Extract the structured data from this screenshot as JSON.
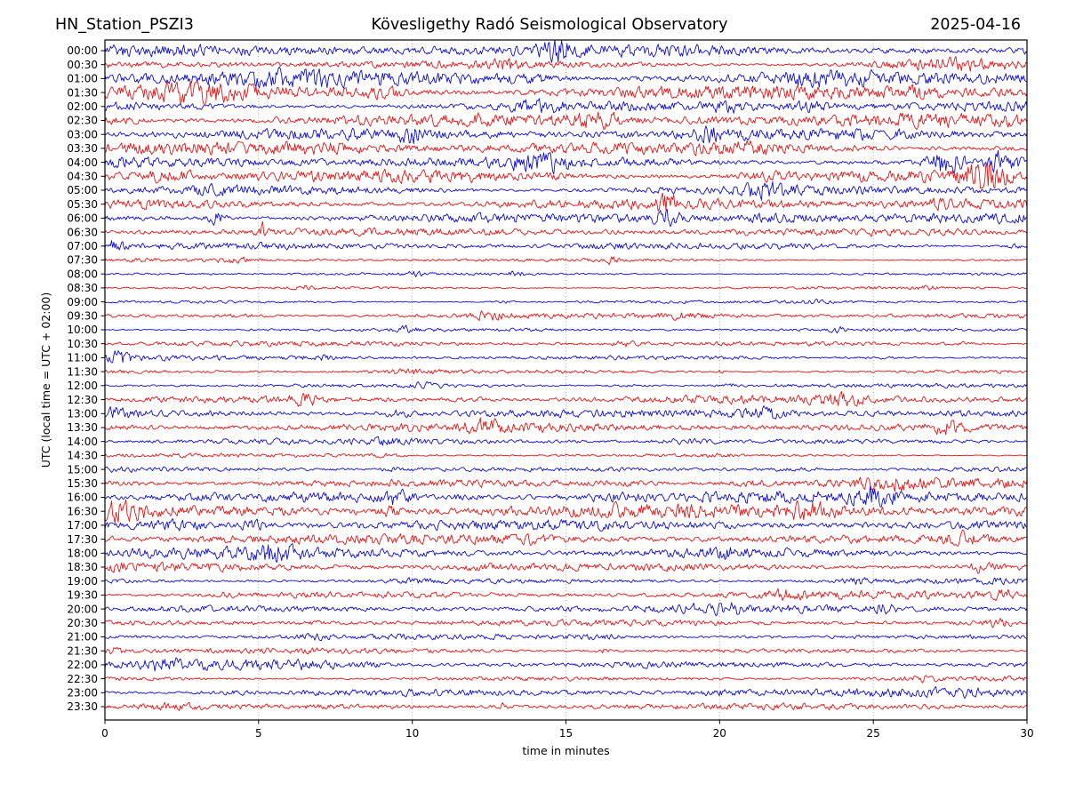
{
  "header": {
    "station": "HN_Station_PSZI3",
    "observatory": "Kövesligethy Radó Seismological Observatory",
    "date": "2025-04-16"
  },
  "chart_data": {
    "type": "line",
    "subtype": "helicorder-dayplot",
    "title": "HN_Station_PSZI3 — Kövesligethy Radó Seismological Observatory — 2025-04-16",
    "xlabel": "time in minutes",
    "ylabel": "UTC (local time = UTC + 02:00)",
    "xlim": [
      0,
      30
    ],
    "x_ticks": [
      0,
      5,
      10,
      15,
      20,
      25,
      30
    ],
    "grid": {
      "vertical_minutes": [
        5,
        10,
        15,
        20,
        25
      ],
      "style": "dotted",
      "color": "#999999"
    },
    "trace_colors": {
      "blue": "#0d0dd6",
      "red": "#e41414"
    },
    "frame_color": "#000000",
    "minutes_per_line": 30,
    "rows": [
      {
        "label": "00:00",
        "color": "blue",
        "amp": 3.0,
        "events": [
          [
            14.7,
            0.5,
            1.5
          ],
          [
            26.0,
            0.8,
            0.8
          ]
        ]
      },
      {
        "label": "00:30",
        "color": "red",
        "amp": 2.0,
        "events": [
          [
            13.0,
            0.4,
            1.2
          ],
          [
            27.3,
            2.2,
            1.6
          ]
        ]
      },
      {
        "label": "01:00",
        "color": "blue",
        "amp": 4.2,
        "events": [
          [
            6.0,
            1.5,
            0.5
          ],
          [
            14.0,
            0.8,
            0.8
          ],
          [
            23.0,
            1.5,
            0.5
          ]
        ]
      },
      {
        "label": "01:30",
        "color": "red",
        "amp": 4.2,
        "events": [
          [
            3.0,
            1.5,
            0.6
          ],
          [
            9.0,
            0.8,
            1.0
          ],
          [
            26.5,
            0.8,
            0.9
          ]
        ]
      },
      {
        "label": "02:00",
        "color": "blue",
        "amp": 2.7,
        "events": [
          [
            14.0,
            0.8,
            0.8
          ],
          [
            20.3,
            0.5,
            1.4
          ],
          [
            23.0,
            0.7,
            1.0
          ]
        ]
      },
      {
        "label": "02:30",
        "color": "red",
        "amp": 3.3,
        "events": [
          [
            0.5,
            0.8,
            0.8
          ],
          [
            16.0,
            0.7,
            1.2
          ]
        ]
      },
      {
        "label": "03:00",
        "color": "blue",
        "amp": 2.7,
        "events": [
          [
            9.9,
            0.4,
            1.4
          ],
          [
            19.6,
            0.5,
            1.0
          ]
        ]
      },
      {
        "label": "03:30",
        "color": "red",
        "amp": 3.1,
        "events": [
          [
            7.0,
            1.0,
            0.6
          ],
          [
            21.0,
            1.0,
            0.5
          ]
        ]
      },
      {
        "label": "04:00",
        "color": "blue",
        "amp": 2.9,
        "events": [
          [
            14.0,
            0.8,
            1.2
          ],
          [
            27.3,
            0.5,
            3.6
          ],
          [
            29.2,
            0.4,
            2.6
          ]
        ]
      },
      {
        "label": "04:30",
        "color": "red",
        "amp": 3.6,
        "events": [
          [
            2.0,
            1.0,
            0.7
          ],
          [
            21.5,
            1.0,
            0.7
          ],
          [
            28.6,
            0.6,
            3.2
          ]
        ]
      },
      {
        "label": "05:00",
        "color": "blue",
        "amp": 2.6,
        "events": [
          [
            4.0,
            1.0,
            0.5
          ],
          [
            21.5,
            0.8,
            1.2
          ]
        ]
      },
      {
        "label": "05:30",
        "color": "red",
        "amp": 2.9,
        "events": [
          [
            18.3,
            0.4,
            1.2
          ],
          [
            27.0,
            1.2,
            0.8
          ]
        ]
      },
      {
        "label": "06:00",
        "color": "blue",
        "amp": 2.4,
        "events": [
          [
            3.6,
            0.3,
            4.6
          ],
          [
            18.3,
            0.4,
            2.4
          ],
          [
            22.0,
            1.5,
            0.8
          ]
        ]
      },
      {
        "label": "06:30",
        "color": "red",
        "amp": 1.8,
        "events": [
          [
            1.5,
            1.0,
            0.5
          ],
          [
            5.1,
            0.15,
            2.6
          ]
        ]
      },
      {
        "label": "07:00",
        "color": "blue",
        "amp": 1.6,
        "events": [
          [
            0.3,
            0.3,
            2.2
          ],
          [
            16.0,
            1.0,
            0.6
          ],
          [
            29.6,
            0.3,
            2.4
          ]
        ]
      },
      {
        "label": "07:30",
        "color": "red",
        "amp": 0.9,
        "events": [
          [
            4.2,
            0.5,
            1.6
          ],
          [
            16.5,
            0.15,
            2.6
          ]
        ]
      },
      {
        "label": "08:00",
        "color": "blue",
        "amp": 0.8,
        "events": [
          [
            10.0,
            0.4,
            1.6
          ],
          [
            13.4,
            0.3,
            2.0
          ]
        ]
      },
      {
        "label": "08:30",
        "color": "red",
        "amp": 0.8,
        "events": [
          [
            6.5,
            0.3,
            1.5
          ],
          [
            26.8,
            0.3,
            1.8
          ]
        ]
      },
      {
        "label": "09:00",
        "color": "blue",
        "amp": 0.8,
        "events": [
          [
            13.0,
            0.3,
            1.9
          ],
          [
            23.0,
            0.5,
            0.9
          ]
        ]
      },
      {
        "label": "09:30",
        "color": "red",
        "amp": 1.3,
        "events": [
          [
            4.5,
            0.8,
            1.4
          ],
          [
            12.5,
            0.6,
            1.4
          ],
          [
            19.0,
            0.8,
            0.9
          ]
        ]
      },
      {
        "label": "10:00",
        "color": "blue",
        "amp": 0.8,
        "events": [
          [
            9.8,
            0.3,
            1.6
          ],
          [
            23.8,
            0.2,
            2.2
          ]
        ]
      },
      {
        "label": "10:30",
        "color": "red",
        "amp": 1.2,
        "events": [
          [
            16.8,
            0.4,
            1.7
          ],
          [
            28.0,
            0.6,
            1.0
          ]
        ]
      },
      {
        "label": "11:00",
        "color": "blue",
        "amp": 1.2,
        "events": [
          [
            0.5,
            0.4,
            2.0
          ],
          [
            7.0,
            0.6,
            1.2
          ],
          [
            25.5,
            0.8,
            1.2
          ]
        ]
      },
      {
        "label": "11:30",
        "color": "red",
        "amp": 1.1,
        "events": [
          [
            10.0,
            1.0,
            1.4
          ],
          [
            20.0,
            0.15,
            2.2
          ]
        ]
      },
      {
        "label": "12:00",
        "color": "blue",
        "amp": 1.1,
        "events": [
          [
            10.5,
            0.6,
            1.1
          ],
          [
            17.0,
            0.7,
            1.3
          ],
          [
            20.3,
            0.3,
            1.9
          ]
        ]
      },
      {
        "label": "12:30",
        "color": "red",
        "amp": 2.1,
        "events": [
          [
            6.5,
            0.5,
            1.3
          ],
          [
            12.0,
            0.8,
            0.8
          ],
          [
            24.0,
            0.8,
            0.8
          ]
        ]
      },
      {
        "label": "13:00",
        "color": "blue",
        "amp": 2.1,
        "events": [
          [
            0.5,
            0.5,
            1.3
          ],
          [
            9.5,
            0.5,
            1.4
          ],
          [
            21.5,
            0.6,
            1.2
          ]
        ]
      },
      {
        "label": "13:30",
        "color": "red",
        "amp": 2.1,
        "events": [
          [
            12.5,
            0.8,
            1.1
          ],
          [
            27.4,
            0.5,
            1.2
          ]
        ]
      },
      {
        "label": "14:00",
        "color": "blue",
        "amp": 1.3,
        "events": [
          [
            9.0,
            0.8,
            0.7
          ],
          [
            19.0,
            0.8,
            1.2
          ]
        ]
      },
      {
        "label": "14:30",
        "color": "red",
        "amp": 0.9,
        "events": [
          [
            9.0,
            0.6,
            0.9
          ],
          [
            20.0,
            0.5,
            0.8
          ]
        ]
      },
      {
        "label": "15:00",
        "color": "blue",
        "amp": 1.5,
        "events": [
          [
            9.5,
            0.6,
            1.0
          ],
          [
            22.5,
            1.0,
            1.3
          ]
        ]
      },
      {
        "label": "15:30",
        "color": "red",
        "amp": 2.5,
        "events": [
          [
            17.0,
            1.0,
            0.9
          ],
          [
            21.0,
            0.8,
            0.9
          ],
          [
            25.5,
            1.0,
            1.0
          ]
        ]
      },
      {
        "label": "16:00",
        "color": "blue",
        "amp": 3.2,
        "events": [
          [
            9.5,
            0.4,
            1.6
          ],
          [
            16.5,
            0.8,
            0.9
          ],
          [
            25.0,
            0.5,
            1.1
          ]
        ]
      },
      {
        "label": "16:30",
        "color": "red",
        "amp": 3.4,
        "events": [
          [
            0.5,
            0.8,
            1.6
          ],
          [
            9.3,
            0.3,
            1.6
          ],
          [
            23.0,
            0.8,
            0.9
          ]
        ]
      },
      {
        "label": "17:00",
        "color": "blue",
        "amp": 2.4,
        "events": [
          [
            2.5,
            1.0,
            1.3
          ],
          [
            4.8,
            0.4,
            1.7
          ]
        ]
      },
      {
        "label": "17:30",
        "color": "red",
        "amp": 2.4,
        "events": [
          [
            14.0,
            1.0,
            0.5
          ],
          [
            28.0,
            0.8,
            1.0
          ]
        ]
      },
      {
        "label": "18:00",
        "color": "blue",
        "amp": 2.7,
        "events": [
          [
            5.5,
            0.8,
            0.9
          ],
          [
            20.0,
            1.0,
            0.8
          ]
        ]
      },
      {
        "label": "18:30",
        "color": "red",
        "amp": 2.5,
        "events": [
          [
            12.0,
            0.7,
            1.0
          ],
          [
            28.5,
            0.4,
            1.3
          ]
        ]
      },
      {
        "label": "19:00",
        "color": "blue",
        "amp": 1.5,
        "events": [
          [
            10.0,
            0.8,
            0.6
          ],
          [
            24.5,
            0.5,
            1.2
          ]
        ]
      },
      {
        "label": "19:30",
        "color": "red",
        "amp": 1.9,
        "events": [
          [
            4.0,
            0.8,
            0.7
          ],
          [
            22.3,
            0.6,
            1.1
          ],
          [
            29.3,
            0.3,
            1.4
          ]
        ]
      },
      {
        "label": "20:00",
        "color": "blue",
        "amp": 1.9,
        "events": [
          [
            20.0,
            0.8,
            0.9
          ],
          [
            25.3,
            0.4,
            1.5
          ]
        ]
      },
      {
        "label": "20:30",
        "color": "red",
        "amp": 1.5,
        "events": [
          [
            7.0,
            0.8,
            0.6
          ],
          [
            29.0,
            0.4,
            1.3
          ]
        ]
      },
      {
        "label": "21:00",
        "color": "blue",
        "amp": 1.3,
        "events": [
          [
            6.7,
            0.5,
            1.1
          ],
          [
            16.0,
            0.8,
            0.7
          ]
        ]
      },
      {
        "label": "21:30",
        "color": "red",
        "amp": 1.3,
        "events": [
          [
            0.3,
            0.3,
            1.6
          ],
          [
            16.2,
            0.2,
            1.8
          ]
        ]
      },
      {
        "label": "22:00",
        "color": "blue",
        "amp": 2.1,
        "events": [
          [
            2.0,
            0.6,
            1.1
          ],
          [
            7.0,
            2.5,
            0.9
          ]
        ]
      },
      {
        "label": "22:30",
        "color": "red",
        "amp": 1.3,
        "events": [
          [
            26.5,
            0.5,
            1.2
          ]
        ]
      },
      {
        "label": "23:00",
        "color": "blue",
        "amp": 2.2,
        "events": [
          [
            4.0,
            1.0,
            0.6
          ],
          [
            20.0,
            1.0,
            0.5
          ]
        ]
      },
      {
        "label": "23:30",
        "color": "red",
        "amp": 1.5,
        "events": [
          [
            1.8,
            1.5,
            1.2
          ],
          [
            13.0,
            0.2,
            1.6
          ]
        ]
      }
    ]
  }
}
